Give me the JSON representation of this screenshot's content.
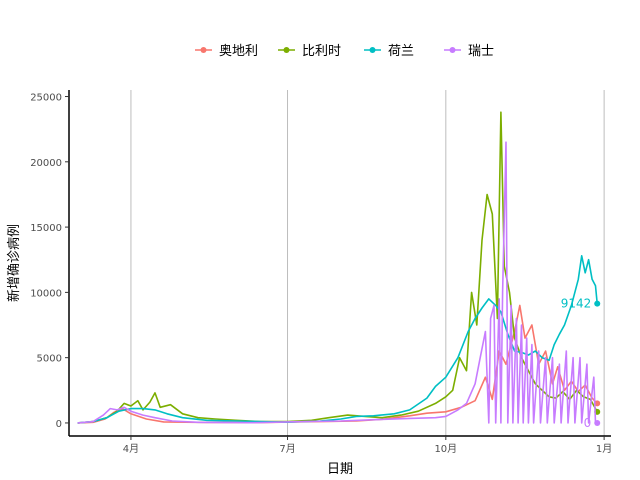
{
  "chart_data": {
    "type": "line",
    "title": "",
    "xlabel": "日期",
    "ylabel": "新增确诊病例",
    "xlim": [
      "2020-02-25",
      "2021-01-05"
    ],
    "ylim": [
      -1000,
      25500
    ],
    "x_ticks": [
      {
        "date": "2020-04-01",
        "label": "4月"
      },
      {
        "date": "2020-07-01",
        "label": "7月"
      },
      {
        "date": "2020-10-01",
        "label": "10月"
      },
      {
        "date": "2021-01-01",
        "label": "1月"
      }
    ],
    "y_ticks": [
      0,
      5000,
      10000,
      15000,
      20000,
      25000
    ],
    "grid": "vertical-major",
    "legend_position": "top",
    "series": [
      {
        "name": "奥地利",
        "color": "#F8766D",
        "end_label": "",
        "points": [
          [
            "2020-03-01",
            0
          ],
          [
            "2020-03-10",
            50
          ],
          [
            "2020-03-17",
            300
          ],
          [
            "2020-03-22",
            800
          ],
          [
            "2020-03-27",
            1100
          ],
          [
            "2020-04-01",
            700
          ],
          [
            "2020-04-10",
            300
          ],
          [
            "2020-04-20",
            80
          ],
          [
            "2020-05-15",
            40
          ],
          [
            "2020-06-15",
            30
          ],
          [
            "2020-07-10",
            90
          ],
          [
            "2020-07-25",
            120
          ],
          [
            "2020-08-10",
            150
          ],
          [
            "2020-08-25",
            280
          ],
          [
            "2020-09-10",
            550
          ],
          [
            "2020-09-20",
            750
          ],
          [
            "2020-10-01",
            850
          ],
          [
            "2020-10-10",
            1200
          ],
          [
            "2020-10-18",
            1700
          ],
          [
            "2020-10-24",
            3500
          ],
          [
            "2020-10-28",
            1800
          ],
          [
            "2020-11-01",
            5500
          ],
          [
            "2020-11-05",
            4500
          ],
          [
            "2020-11-10",
            7000
          ],
          [
            "2020-11-13",
            9000
          ],
          [
            "2020-11-16",
            6500
          ],
          [
            "2020-11-20",
            7500
          ],
          [
            "2020-11-24",
            4500
          ],
          [
            "2020-11-28",
            5500
          ],
          [
            "2020-12-02",
            3000
          ],
          [
            "2020-12-05",
            4300
          ],
          [
            "2020-12-09",
            2500
          ],
          [
            "2020-12-13",
            3200
          ],
          [
            "2020-12-17",
            2400
          ],
          [
            "2020-12-21",
            2900
          ],
          [
            "2020-12-25",
            1900
          ],
          [
            "2020-12-28",
            1500
          ]
        ]
      },
      {
        "name": "比利时",
        "color": "#7CAE00",
        "end_label": "",
        "points": [
          [
            "2020-03-01",
            0
          ],
          [
            "2020-03-10",
            100
          ],
          [
            "2020-03-18",
            400
          ],
          [
            "2020-03-24",
            900
          ],
          [
            "2020-03-28",
            1500
          ],
          [
            "2020-04-01",
            1300
          ],
          [
            "2020-04-05",
            1700
          ],
          [
            "2020-04-08",
            1000
          ],
          [
            "2020-04-12",
            1600
          ],
          [
            "2020-04-15",
            2300
          ],
          [
            "2020-04-18",
            1200
          ],
          [
            "2020-04-24",
            1400
          ],
          [
            "2020-05-01",
            700
          ],
          [
            "2020-05-10",
            400
          ],
          [
            "2020-05-20",
            300
          ],
          [
            "2020-06-01",
            200
          ],
          [
            "2020-06-15",
            100
          ],
          [
            "2020-07-01",
            100
          ],
          [
            "2020-07-15",
            200
          ],
          [
            "2020-07-25",
            400
          ],
          [
            "2020-08-05",
            600
          ],
          [
            "2020-08-15",
            500
          ],
          [
            "2020-08-25",
            400
          ],
          [
            "2020-09-05",
            600
          ],
          [
            "2020-09-15",
            900
          ],
          [
            "2020-09-25",
            1500
          ],
          [
            "2020-10-01",
            2000
          ],
          [
            "2020-10-05",
            2500
          ],
          [
            "2020-10-09",
            5000
          ],
          [
            "2020-10-13",
            4000
          ],
          [
            "2020-10-16",
            10000
          ],
          [
            "2020-10-19",
            7500
          ],
          [
            "2020-10-22",
            14000
          ],
          [
            "2020-10-25",
            17500
          ],
          [
            "2020-10-28",
            16000
          ],
          [
            "2020-10-31",
            8000
          ],
          [
            "2020-11-02",
            23800
          ],
          [
            "2020-11-04",
            12000
          ],
          [
            "2020-11-07",
            10000
          ],
          [
            "2020-11-10",
            6500
          ],
          [
            "2020-11-14",
            5000
          ],
          [
            "2020-11-18",
            4000
          ],
          [
            "2020-11-22",
            3000
          ],
          [
            "2020-11-26",
            2500
          ],
          [
            "2020-11-30",
            2000
          ],
          [
            "2020-12-04",
            1900
          ],
          [
            "2020-12-08",
            2400
          ],
          [
            "2020-12-12",
            1800
          ],
          [
            "2020-12-16",
            2500
          ],
          [
            "2020-12-20",
            2000
          ],
          [
            "2020-12-24",
            1800
          ],
          [
            "2020-12-28",
            850
          ]
        ]
      },
      {
        "name": "荷兰",
        "color": "#00BFC4",
        "end_label": "9142",
        "points": [
          [
            "2020-03-01",
            0
          ],
          [
            "2020-03-10",
            100
          ],
          [
            "2020-03-18",
            400
          ],
          [
            "2020-03-25",
            900
          ],
          [
            "2020-04-01",
            1100
          ],
          [
            "2020-04-08",
            1100
          ],
          [
            "2020-04-15",
            1000
          ],
          [
            "2020-04-22",
            700
          ],
          [
            "2020-05-01",
            400
          ],
          [
            "2020-05-15",
            200
          ],
          [
            "2020-06-01",
            150
          ],
          [
            "2020-06-15",
            100
          ],
          [
            "2020-07-01",
            60
          ],
          [
            "2020-07-20",
            150
          ],
          [
            "2020-08-01",
            300
          ],
          [
            "2020-08-10",
            500
          ],
          [
            "2020-08-20",
            550
          ],
          [
            "2020-09-01",
            700
          ],
          [
            "2020-09-10",
            1000
          ],
          [
            "2020-09-20",
            1900
          ],
          [
            "2020-09-25",
            2800
          ],
          [
            "2020-10-01",
            3500
          ],
          [
            "2020-10-08",
            5000
          ],
          [
            "2020-10-14",
            7000
          ],
          [
            "2020-10-18",
            8000
          ],
          [
            "2020-10-22",
            8800
          ],
          [
            "2020-10-26",
            9500
          ],
          [
            "2020-10-30",
            9000
          ],
          [
            "2020-11-02",
            8500
          ],
          [
            "2020-11-06",
            6800
          ],
          [
            "2020-11-10",
            5500
          ],
          [
            "2020-11-14",
            5400
          ],
          [
            "2020-11-18",
            5200
          ],
          [
            "2020-11-22",
            5500
          ],
          [
            "2020-11-26",
            5000
          ],
          [
            "2020-11-30",
            4800
          ],
          [
            "2020-12-03",
            6000
          ],
          [
            "2020-12-06",
            6800
          ],
          [
            "2020-12-09",
            7500
          ],
          [
            "2020-12-13",
            9000
          ],
          [
            "2020-12-17",
            11000
          ],
          [
            "2020-12-19",
            12800
          ],
          [
            "2020-12-21",
            11500
          ],
          [
            "2020-12-23",
            12500
          ],
          [
            "2020-12-25",
            11000
          ],
          [
            "2020-12-27",
            10500
          ],
          [
            "2020-12-28",
            9142
          ]
        ]
      },
      {
        "name": "瑞士",
        "color": "#C77CFF",
        "end_label": "0",
        "points": [
          [
            "2020-03-01",
            0
          ],
          [
            "2020-03-10",
            100
          ],
          [
            "2020-03-16",
            600
          ],
          [
            "2020-03-20",
            1100
          ],
          [
            "2020-03-24",
            1000
          ],
          [
            "2020-03-28",
            1200
          ],
          [
            "2020-04-01",
            900
          ],
          [
            "2020-04-08",
            600
          ],
          [
            "2020-04-15",
            400
          ],
          [
            "2020-04-25",
            150
          ],
          [
            "2020-05-10",
            50
          ],
          [
            "2020-06-10",
            20
          ],
          [
            "2020-07-10",
            100
          ],
          [
            "2020-08-01",
            150
          ],
          [
            "2020-08-20",
            250
          ],
          [
            "2020-09-10",
            350
          ],
          [
            "2020-09-25",
            400
          ],
          [
            "2020-10-01",
            500
          ],
          [
            "2020-10-08",
            1000
          ],
          [
            "2020-10-13",
            1500
          ],
          [
            "2020-10-18",
            3000
          ],
          [
            "2020-10-21",
            5000
          ],
          [
            "2020-10-24",
            7000
          ],
          [
            "2020-10-26",
            0
          ],
          [
            "2020-10-27",
            8000
          ],
          [
            "2020-10-29",
            9000
          ],
          [
            "2020-10-30",
            0
          ],
          [
            "2020-11-01",
            9500
          ],
          [
            "2020-11-02",
            0
          ],
          [
            "2020-11-03",
            10000
          ],
          [
            "2020-11-05",
            21500
          ],
          [
            "2020-11-06",
            0
          ],
          [
            "2020-11-08",
            9000
          ],
          [
            "2020-11-09",
            0
          ],
          [
            "2020-11-11",
            8000
          ],
          [
            "2020-11-12",
            0
          ],
          [
            "2020-11-14",
            7500
          ],
          [
            "2020-11-15",
            0
          ],
          [
            "2020-11-17",
            6500
          ],
          [
            "2020-11-18",
            0
          ],
          [
            "2020-11-20",
            6000
          ],
          [
            "2020-11-21",
            0
          ],
          [
            "2020-11-24",
            5500
          ],
          [
            "2020-11-25",
            0
          ],
          [
            "2020-11-28",
            5000
          ],
          [
            "2020-11-29",
            0
          ],
          [
            "2020-12-02",
            5000
          ],
          [
            "2020-12-03",
            0
          ],
          [
            "2020-12-06",
            4500
          ],
          [
            "2020-12-07",
            0
          ],
          [
            "2020-12-10",
            5500
          ],
          [
            "2020-12-11",
            0
          ],
          [
            "2020-12-14",
            5000
          ],
          [
            "2020-12-15",
            0
          ],
          [
            "2020-12-18",
            5000
          ],
          [
            "2020-12-19",
            0
          ],
          [
            "2020-12-22",
            4500
          ],
          [
            "2020-12-23",
            0
          ],
          [
            "2020-12-26",
            3500
          ],
          [
            "2020-12-27",
            0
          ],
          [
            "2020-12-28",
            0
          ]
        ]
      }
    ]
  }
}
